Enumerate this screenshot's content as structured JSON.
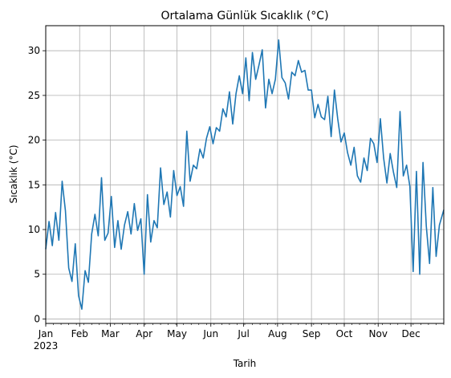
{
  "chart_data": {
    "type": "line",
    "title": "Ortalama Günlük Sıcaklık (°C)",
    "xlabel": "Tarih",
    "ylabel": "Sıcaklık (°C)",
    "x_range": [
      "2023-01-01",
      "2023-12-31"
    ],
    "ylim": [
      -0.5,
      32.8
    ],
    "grid": true,
    "x_tick_labels": [
      {
        "date": "2023-01-01",
        "label": "Jan",
        "sublabel": "2023"
      },
      {
        "date": "2023-02-01",
        "label": "Feb"
      },
      {
        "date": "2023-03-01",
        "label": "Mar"
      },
      {
        "date": "2023-04-01",
        "label": "Apr"
      },
      {
        "date": "2023-05-01",
        "label": "May"
      },
      {
        "date": "2023-06-01",
        "label": "Jun"
      },
      {
        "date": "2023-07-01",
        "label": "Jul"
      },
      {
        "date": "2023-08-01",
        "label": "Aug"
      },
      {
        "date": "2023-09-01",
        "label": "Sep"
      },
      {
        "date": "2023-10-01",
        "label": "Oct"
      },
      {
        "date": "2023-11-01",
        "label": "Nov"
      },
      {
        "date": "2023-12-01",
        "label": "Dec"
      }
    ],
    "y_ticks": [
      0,
      5,
      10,
      15,
      20,
      25,
      30
    ],
    "series": [
      {
        "color": "#1f77b4",
        "x": [
          "2023-01-01",
          "2023-01-04",
          "2023-01-07",
          "2023-01-10",
          "2023-01-13",
          "2023-01-16",
          "2023-01-19",
          "2023-01-22",
          "2023-01-25",
          "2023-01-28",
          "2023-01-31",
          "2023-02-03",
          "2023-02-06",
          "2023-02-09",
          "2023-02-12",
          "2023-02-15",
          "2023-02-18",
          "2023-02-21",
          "2023-02-24",
          "2023-02-27",
          "2023-03-02",
          "2023-03-05",
          "2023-03-08",
          "2023-03-11",
          "2023-03-14",
          "2023-03-17",
          "2023-03-20",
          "2023-03-23",
          "2023-03-26",
          "2023-03-29",
          "2023-04-01",
          "2023-04-04",
          "2023-04-07",
          "2023-04-10",
          "2023-04-13",
          "2023-04-16",
          "2023-04-19",
          "2023-04-22",
          "2023-04-25",
          "2023-04-28",
          "2023-05-01",
          "2023-05-04",
          "2023-05-07",
          "2023-05-10",
          "2023-05-13",
          "2023-05-16",
          "2023-05-19",
          "2023-05-22",
          "2023-05-25",
          "2023-05-28",
          "2023-05-31",
          "2023-06-03",
          "2023-06-06",
          "2023-06-09",
          "2023-06-12",
          "2023-06-15",
          "2023-06-18",
          "2023-06-21",
          "2023-06-24",
          "2023-06-27",
          "2023-06-30",
          "2023-07-03",
          "2023-07-06",
          "2023-07-09",
          "2023-07-12",
          "2023-07-15",
          "2023-07-18",
          "2023-07-21",
          "2023-07-24",
          "2023-07-27",
          "2023-07-30",
          "2023-08-02",
          "2023-08-05",
          "2023-08-08",
          "2023-08-11",
          "2023-08-14",
          "2023-08-17",
          "2023-08-20",
          "2023-08-23",
          "2023-08-26",
          "2023-08-29",
          "2023-09-01",
          "2023-09-04",
          "2023-09-07",
          "2023-09-10",
          "2023-09-13",
          "2023-09-16",
          "2023-09-19",
          "2023-09-22",
          "2023-09-25",
          "2023-09-28",
          "2023-10-01",
          "2023-10-04",
          "2023-10-07",
          "2023-10-10",
          "2023-10-13",
          "2023-10-16",
          "2023-10-19",
          "2023-10-22",
          "2023-10-25",
          "2023-10-28",
          "2023-10-31",
          "2023-11-03",
          "2023-11-06",
          "2023-11-09",
          "2023-11-12",
          "2023-11-15",
          "2023-11-18",
          "2023-11-21",
          "2023-11-24",
          "2023-11-27",
          "2023-11-30",
          "2023-12-03",
          "2023-12-06",
          "2023-12-09",
          "2023-12-12",
          "2023-12-15",
          "2023-12-18",
          "2023-12-21",
          "2023-12-24",
          "2023-12-27",
          "2023-12-31"
        ],
        "y": [
          7.8,
          10.9,
          8.2,
          11.9,
          8.8,
          15.4,
          12.1,
          5.7,
          4.2,
          8.4,
          2.6,
          1.1,
          5.4,
          4.1,
          9.5,
          11.7,
          9.3,
          15.8,
          8.8,
          9.6,
          13.7,
          8.0,
          11.0,
          7.8,
          10.5,
          12.0,
          9.5,
          12.9,
          9.9,
          11.2,
          5.0,
          13.9,
          8.6,
          11.0,
          10.2,
          16.9,
          12.8,
          14.2,
          11.4,
          16.6,
          13.8,
          14.8,
          12.6,
          21.0,
          15.4,
          17.2,
          16.8,
          19.0,
          18.0,
          20.2,
          21.5,
          19.6,
          21.4,
          21.0,
          23.5,
          22.6,
          25.4,
          21.8,
          25.2,
          27.2,
          25.2,
          29.2,
          24.4,
          29.8,
          26.8,
          28.4,
          30.1,
          23.6,
          26.8,
          25.2,
          26.8,
          31.2,
          27.0,
          26.4,
          24.6,
          27.6,
          27.2,
          28.9,
          27.6,
          27.8,
          25.6,
          25.6,
          22.5,
          24.0,
          22.6,
          22.3,
          24.9,
          20.4,
          25.6,
          22.4,
          19.8,
          20.8,
          18.6,
          17.2,
          19.2,
          16.0,
          15.3,
          18.0,
          16.6,
          20.2,
          19.6,
          17.5,
          22.4,
          18.0,
          15.2,
          18.5,
          16.4,
          14.7,
          23.2,
          16.0,
          17.2,
          14.8,
          5.3,
          16.5,
          5.0,
          17.5,
          10.4,
          6.2,
          14.7,
          7.0,
          10.5,
          12.2
        ]
      }
    ]
  }
}
